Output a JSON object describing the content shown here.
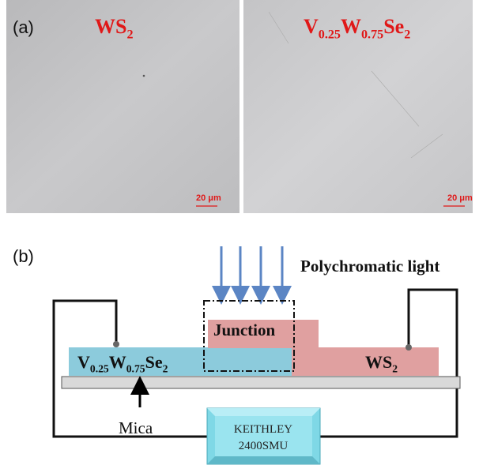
{
  "panel_a": {
    "label": "(a)",
    "left_image": {
      "label": [
        {
          "main": "WS",
          "sub": "2"
        }
      ],
      "scale_bar": "20 μm"
    },
    "right_image": {
      "label": [
        {
          "main": "V",
          "sub": "0.25"
        },
        {
          "main": "W",
          "sub": "0.75"
        },
        {
          "main": "Se",
          "sub": "2"
        }
      ],
      "scale_bar": "20 μm"
    }
  },
  "panel_b": {
    "label": "(b)",
    "light": "Polychromatic light",
    "junction": "Junction",
    "left_material": [
      {
        "main": "V",
        "sub": "0.25"
      },
      {
        "main": "W",
        "sub": "0.75"
      },
      {
        "main": "Se",
        "sub": "2"
      }
    ],
    "right_material": [
      {
        "main": "WS",
        "sub": "2"
      }
    ],
    "substrate": "Mica",
    "instrument": [
      "KEITHLEY",
      "2400SMU"
    ]
  }
}
